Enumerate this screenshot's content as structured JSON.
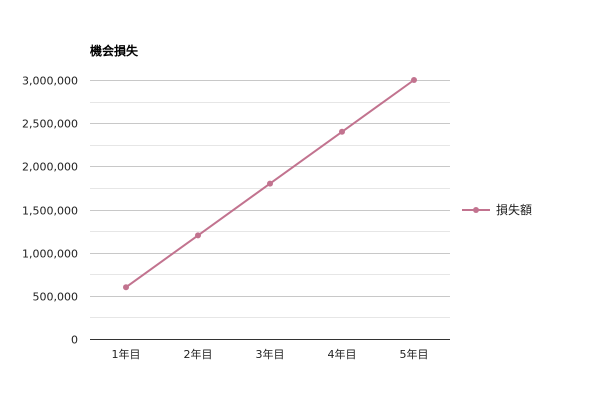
{
  "chart_data": {
    "type": "line",
    "title": "機会損失",
    "categories": [
      "1年目",
      "2年目",
      "3年目",
      "4年目",
      "5年目"
    ],
    "series": [
      {
        "name": "損失額",
        "values": [
          600000,
          1200000,
          1800000,
          2400000,
          3000000
        ],
        "color": "#c2738f"
      }
    ],
    "ylim": [
      0,
      3000000
    ],
    "y_ticks": [
      0,
      500000,
      1000000,
      1500000,
      2000000,
      2500000,
      3000000
    ],
    "y_tick_labels": [
      "0",
      "500,000",
      "1,000,000",
      "1,500,000",
      "2,000,000",
      "2,500,000",
      "3,000,000"
    ],
    "grid": true,
    "legend_position": "right"
  },
  "colors": {
    "grid_major": "#c8c8c8",
    "grid_minor": "#e6e6e6",
    "axis": "#333333"
  }
}
